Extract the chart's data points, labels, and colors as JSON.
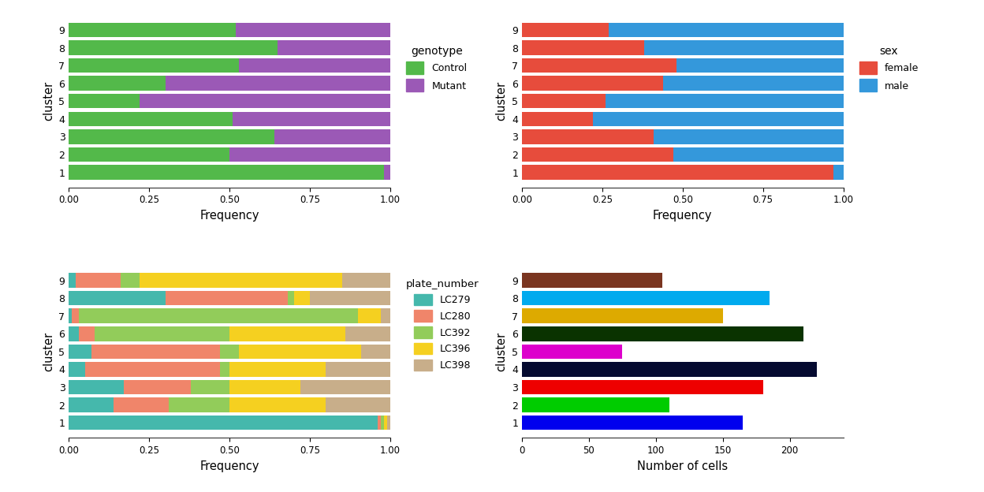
{
  "clusters": [
    1,
    2,
    3,
    4,
    5,
    6,
    7,
    8,
    9
  ],
  "genotype": {
    "Control": [
      0.98,
      0.5,
      0.64,
      0.51,
      0.22,
      0.3,
      0.53,
      0.65,
      0.52
    ],
    "Mutant": [
      0.02,
      0.5,
      0.36,
      0.49,
      0.78,
      0.7,
      0.47,
      0.35,
      0.48
    ]
  },
  "genotype_colors": {
    "Control": "#53b94a",
    "Mutant": "#9b59b6"
  },
  "sex": {
    "female": [
      0.97,
      0.47,
      0.41,
      0.22,
      0.26,
      0.44,
      0.48,
      0.38,
      0.27
    ],
    "male": [
      0.03,
      0.53,
      0.59,
      0.78,
      0.74,
      0.56,
      0.52,
      0.62,
      0.73
    ]
  },
  "sex_colors": {
    "female": "#e74c3c",
    "male": "#3498db"
  },
  "plate": {
    "LC279": [
      0.96,
      0.14,
      0.17,
      0.05,
      0.07,
      0.03,
      0.01,
      0.3,
      0.02
    ],
    "LC280": [
      0.01,
      0.17,
      0.21,
      0.42,
      0.4,
      0.05,
      0.02,
      0.38,
      0.14
    ],
    "LC392": [
      0.01,
      0.19,
      0.12,
      0.03,
      0.06,
      0.42,
      0.87,
      0.02,
      0.06
    ],
    "LC396": [
      0.01,
      0.3,
      0.22,
      0.3,
      0.38,
      0.36,
      0.07,
      0.05,
      0.63
    ],
    "LC398": [
      0.01,
      0.2,
      0.28,
      0.2,
      0.09,
      0.14,
      0.03,
      0.25,
      0.15
    ]
  },
  "plate_colors": {
    "LC279": "#45b8ac",
    "LC280": "#f0856a",
    "LC392": "#92cc5a",
    "LC396": "#f5d020",
    "LC398": "#c8ae8a"
  },
  "cell_counts": [
    165,
    110,
    180,
    220,
    75,
    210,
    150,
    185,
    105
  ],
  "cell_colors": [
    "#0000ee",
    "#00cc00",
    "#ee0000",
    "#050a30",
    "#dd00cc",
    "#0a3300",
    "#ddaa00",
    "#00aaee",
    "#7a3520"
  ],
  "bg_color": "#ffffff",
  "ax_bg_color": "#ffffff"
}
